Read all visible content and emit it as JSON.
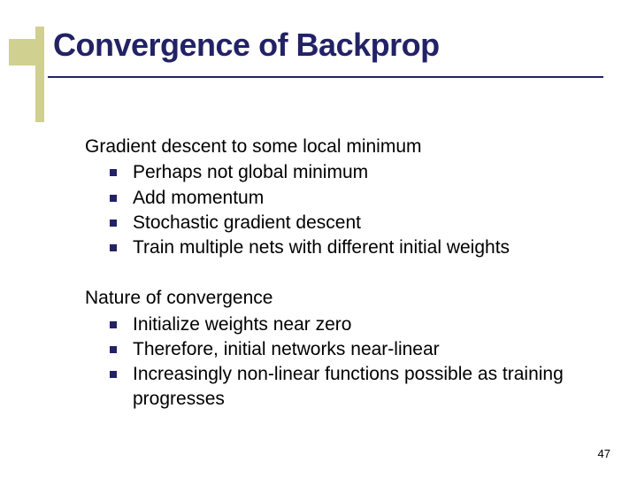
{
  "title": "Convergence of Backprop",
  "sections": [
    {
      "heading": "Gradient descent to some local minimum",
      "bullets": [
        "Perhaps not global minimum",
        "Add momentum",
        "Stochastic gradient descent",
        "Train multiple nets with different initial weights"
      ]
    },
    {
      "heading": "Nature of convergence",
      "bullets": [
        "Initialize weights near zero",
        "Therefore, initial networks near-linear",
        "Increasingly non-linear functions possible as training progresses"
      ]
    }
  ],
  "page_number": "47",
  "colors": {
    "title_color": "#222266",
    "bullet_color": "#222266",
    "accent_color": "#d0d090",
    "text_color": "#000000",
    "background": "#ffffff"
  }
}
